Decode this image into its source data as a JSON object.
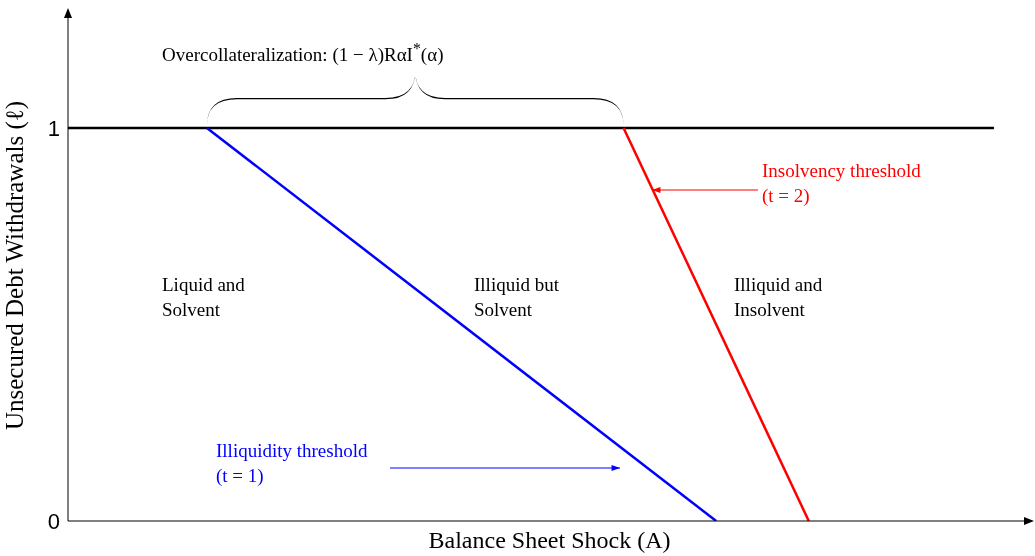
{
  "chart_data": {
    "type": "line",
    "xlabel": "Balance Sheet Shock (A)",
    "ylabel": "Unsecured Debt Withdrawals (ℓ)",
    "categories": [
      null,
      null,
      null,
      null,
      null,
      null,
      null,
      null,
      null,
      null,
      null,
      null,
      null,
      null,
      null,
      null,
      null,
      null,
      null,
      null,
      null
    ],
    "ylim": [
      0,
      1.3
    ],
    "yticks": [
      0,
      1
    ],
    "grid": false,
    "legend": false,
    "series": [
      {
        "color": "#000000",
        "values": [
          1,
          1,
          1,
          1,
          1,
          1,
          1,
          1,
          1,
          1,
          1,
          1,
          1,
          1,
          1,
          1,
          1,
          1,
          1,
          1,
          1
        ]
      },
      {
        "name": "Illiquidity threshold (t = 1)",
        "color": "#0000ff",
        "values": [
          null,
          null,
          null,
          1,
          null,
          null,
          null,
          null,
          null,
          null,
          null,
          null,
          null,
          null,
          0,
          null,
          null,
          null,
          null,
          null,
          null
        ]
      },
      {
        "name": "Insolvency threshold (t = 2)",
        "color": "#ff0000",
        "values": [
          null,
          null,
          null,
          null,
          null,
          null,
          null,
          null,
          null,
          null,
          null,
          null,
          1,
          null,
          null,
          null,
          0,
          null,
          null,
          null,
          null
        ]
      }
    ],
    "annotations": [
      "Overcollateralization: (1 − λ)RαI$^{*}$(α)",
      "Liquid and Solvent",
      "Illiquid but Solvent",
      "Illiquid and Insolvent"
    ]
  }
}
